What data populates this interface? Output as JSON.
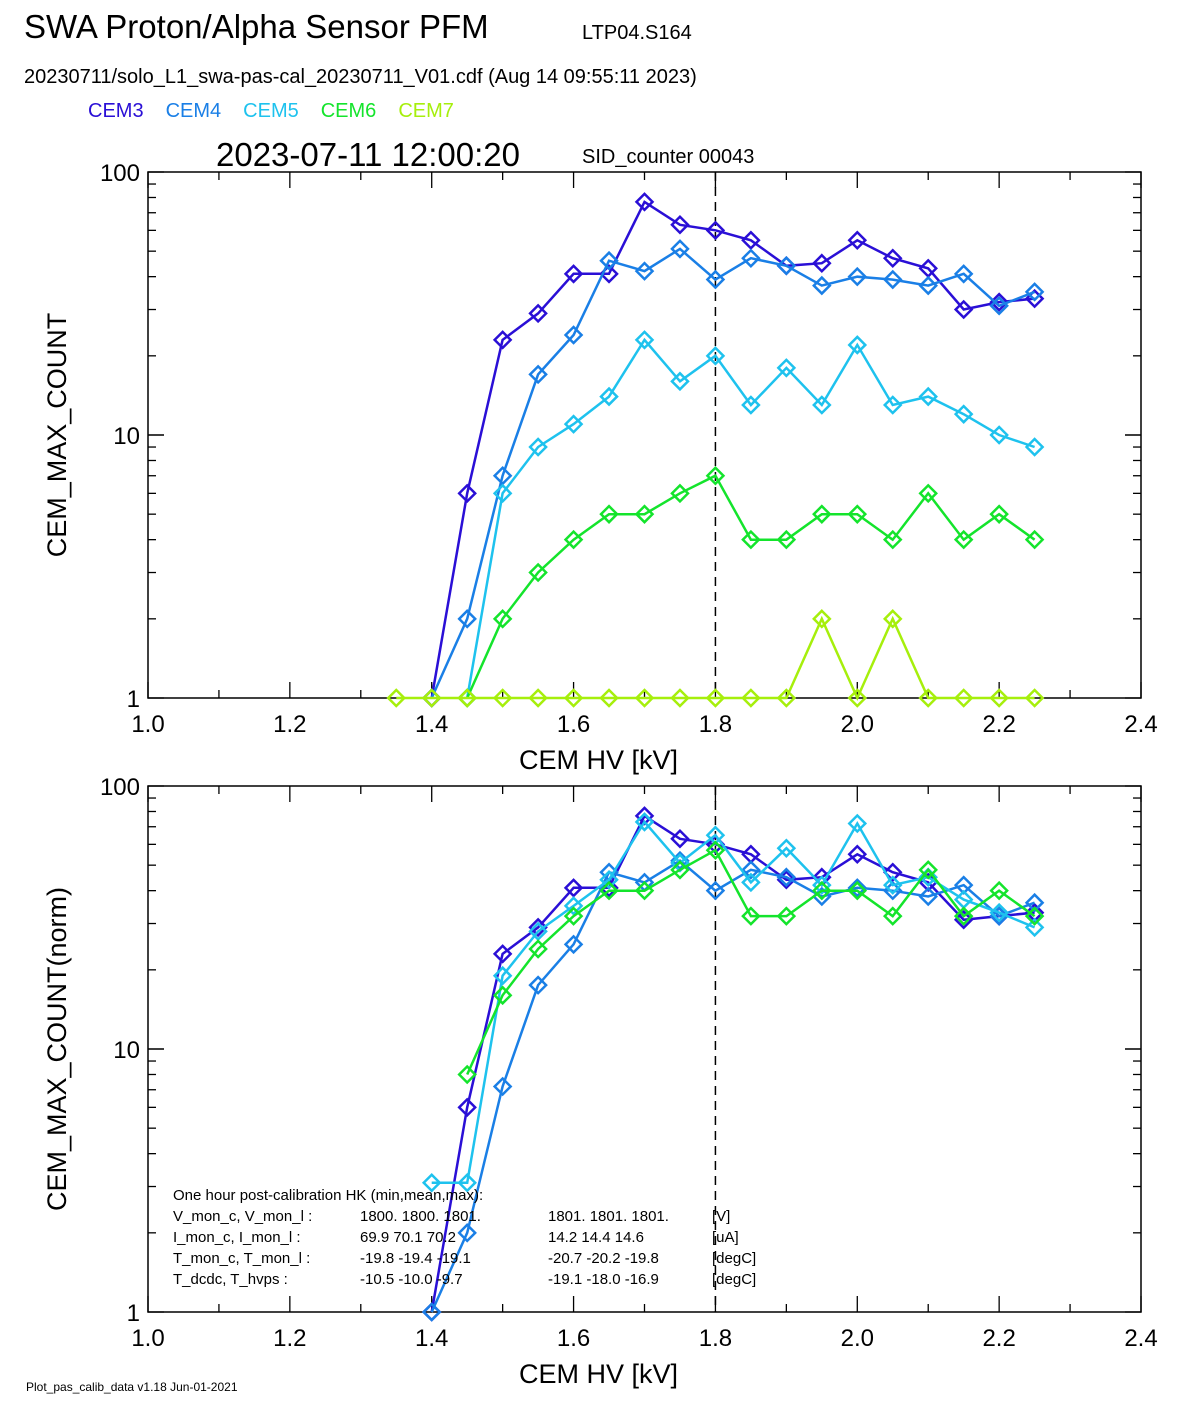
{
  "header": {
    "title": "SWA Proton/Alpha Sensor PFM",
    "title_tag": "LTP04.S164",
    "file_line": "20230711/solo_L1_swa-pas-cal_20230711_V01.cdf  (Aug 14 09:55:11 2023)",
    "timestamp": "2023-07-11 12:00:20",
    "sid": "SID_counter 00043"
  },
  "legend": [
    {
      "name": "CEM3",
      "color": "#2a0fd6"
    },
    {
      "name": "CEM4",
      "color": "#1a7fe6"
    },
    {
      "name": "CEM5",
      "color": "#1ec2ee"
    },
    {
      "name": "CEM6",
      "color": "#14e42c"
    },
    {
      "name": "CEM7",
      "color": "#a6ef0c"
    }
  ],
  "footer": "Plot_pas_calib_data v1.18 Jun-01-2021",
  "hk": {
    "title": "One hour post-calibration HK (min,mean,max):",
    "rows": [
      {
        "label": "V_mon_c, V_mon_l :",
        "c": "1800.  1800.  1801.",
        "l": "1801.  1801.  1801.",
        "unit": "[V]"
      },
      {
        "label": "I_mon_c,  I_mon_l :",
        "c": "69.9   70.1   70.2",
        "l": "14.2   14.4   14.6",
        "unit": "[uA]"
      },
      {
        "label": "T_mon_c, T_mon_l :",
        "c": "-19.8  -19.4  -19.1",
        "l": "-20.7  -20.2  -19.8",
        "unit": "[degC]"
      },
      {
        "label": "T_dcdc,    T_hvps :",
        "c": "-10.5  -10.0   -9.7",
        "l": "-19.1  -18.0  -16.9",
        "unit": "[degC]"
      }
    ]
  },
  "chart_data": [
    {
      "type": "line",
      "ylabel": "CEM_MAX_COUNT",
      "xlabel": "CEM HV [kV]",
      "xlim": [
        1.0,
        2.4
      ],
      "ylim": [
        1,
        100
      ],
      "yscale": "log",
      "xticks": [
        "1.0",
        "1.2",
        "1.4",
        "1.6",
        "1.8",
        "2.0",
        "2.2",
        "2.4"
      ],
      "yticks": [
        "1",
        "10",
        "100"
      ],
      "marker": "diamond",
      "vline": 1.8,
      "series": [
        {
          "name": "CEM3",
          "color": "#2a0fd6",
          "x": [
            1.4,
            1.45,
            1.5,
            1.55,
            1.6,
            1.65,
            1.7,
            1.75,
            1.8,
            1.85,
            1.9,
            1.95,
            2.0,
            2.05,
            2.1,
            2.15,
            2.2,
            2.25
          ],
          "y": [
            1,
            6,
            23,
            29,
            41,
            41,
            77,
            63,
            60,
            55,
            44,
            45,
            55,
            47,
            43,
            30,
            32,
            33
          ]
        },
        {
          "name": "CEM4",
          "color": "#1a7fe6",
          "x": [
            1.4,
            1.45,
            1.5,
            1.55,
            1.6,
            1.65,
            1.7,
            1.75,
            1.8,
            1.85,
            1.9,
            1.95,
            2.0,
            2.05,
            2.1,
            2.15,
            2.2,
            2.25
          ],
          "y": [
            1,
            2,
            7,
            17,
            24,
            46,
            42,
            51,
            39,
            47,
            44,
            37,
            40,
            39,
            37,
            41,
            31,
            35
          ]
        },
        {
          "name": "CEM5",
          "color": "#1ec2ee",
          "x": [
            1.45,
            1.5,
            1.55,
            1.6,
            1.65,
            1.7,
            1.75,
            1.8,
            1.85,
            1.9,
            1.95,
            2.0,
            2.05,
            2.1,
            2.15,
            2.2,
            2.25
          ],
          "y": [
            1,
            6,
            9,
            11,
            14,
            23,
            16,
            20,
            13,
            18,
            13,
            22,
            13,
            14,
            12,
            10,
            9
          ]
        },
        {
          "name": "CEM6",
          "color": "#14e42c",
          "x": [
            1.45,
            1.5,
            1.55,
            1.6,
            1.65,
            1.7,
            1.75,
            1.8,
            1.85,
            1.9,
            1.95,
            2.0,
            2.05,
            2.1,
            2.15,
            2.2,
            2.25
          ],
          "y": [
            1,
            2,
            3,
            4,
            5,
            5,
            6,
            7,
            4,
            4,
            5,
            5,
            4,
            6,
            4,
            5,
            4
          ]
        },
        {
          "name": "CEM7",
          "color": "#a6ef0c",
          "x": [
            1.35,
            1.4,
            1.45,
            1.5,
            1.55,
            1.6,
            1.65,
            1.7,
            1.75,
            1.8,
            1.85,
            1.9,
            1.95,
            2.0,
            2.05,
            2.1,
            2.15,
            2.2,
            2.25
          ],
          "y": [
            1,
            1,
            1,
            1,
            1,
            1,
            1,
            1,
            1,
            1,
            1,
            1,
            2,
            1,
            2,
            1,
            1,
            1,
            1
          ]
        }
      ]
    },
    {
      "type": "line",
      "ylabel": "CEM_MAX_COUNT(norm)",
      "xlabel": "CEM HV [kV]",
      "xlim": [
        1.0,
        2.4
      ],
      "ylim": [
        1,
        100
      ],
      "yscale": "log",
      "xticks": [
        "1.0",
        "1.2",
        "1.4",
        "1.6",
        "1.8",
        "2.0",
        "2.2",
        "2.4"
      ],
      "yticks": [
        "1",
        "10",
        "100"
      ],
      "marker": "diamond",
      "vline": 1.8,
      "series": [
        {
          "name": "CEM3",
          "color": "#2a0fd6",
          "x": [
            1.4,
            1.45,
            1.5,
            1.55,
            1.6,
            1.65,
            1.7,
            1.75,
            1.8,
            1.85,
            1.9,
            1.95,
            2.0,
            2.05,
            2.1,
            2.15,
            2.2,
            2.25
          ],
          "y": [
            1,
            6,
            23,
            29,
            41,
            41,
            77,
            63,
            60,
            55,
            44,
            45,
            55,
            47,
            43,
            31,
            32,
            33
          ]
        },
        {
          "name": "CEM4",
          "color": "#1a7fe6",
          "x": [
            1.4,
            1.45,
            1.5,
            1.55,
            1.6,
            1.65,
            1.7,
            1.75,
            1.8,
            1.85,
            1.9,
            1.95,
            2.0,
            2.05,
            2.1,
            2.15,
            2.2,
            2.25
          ],
          "y": [
            1,
            2,
            7.2,
            17.5,
            25,
            47,
            43,
            52,
            40,
            48,
            45,
            38,
            41,
            40,
            38,
            42,
            32,
            36
          ]
        },
        {
          "name": "CEM5",
          "color": "#1ec2ee",
          "x": [
            1.4,
            1.45,
            1.5,
            1.55,
            1.6,
            1.65,
            1.7,
            1.75,
            1.8,
            1.85,
            1.9,
            1.95,
            2.0,
            2.05,
            2.1,
            2.15,
            2.2,
            2.25
          ],
          "y": [
            3.1,
            3.1,
            19,
            28,
            35,
            44,
            73,
            51,
            65,
            43,
            58,
            42,
            72,
            42,
            45,
            37,
            33,
            29
          ]
        },
        {
          "name": "CEM6",
          "color": "#14e42c",
          "x": [
            1.45,
            1.5,
            1.55,
            1.6,
            1.65,
            1.7,
            1.75,
            1.8,
            1.85,
            1.9,
            1.95,
            2.0,
            2.05,
            2.1,
            2.15,
            2.2,
            2.25
          ],
          "y": [
            8,
            16,
            24,
            32,
            40,
            40,
            48,
            57,
            32,
            32,
            40,
            40,
            32,
            48,
            32,
            40,
            32
          ]
        }
      ]
    }
  ]
}
